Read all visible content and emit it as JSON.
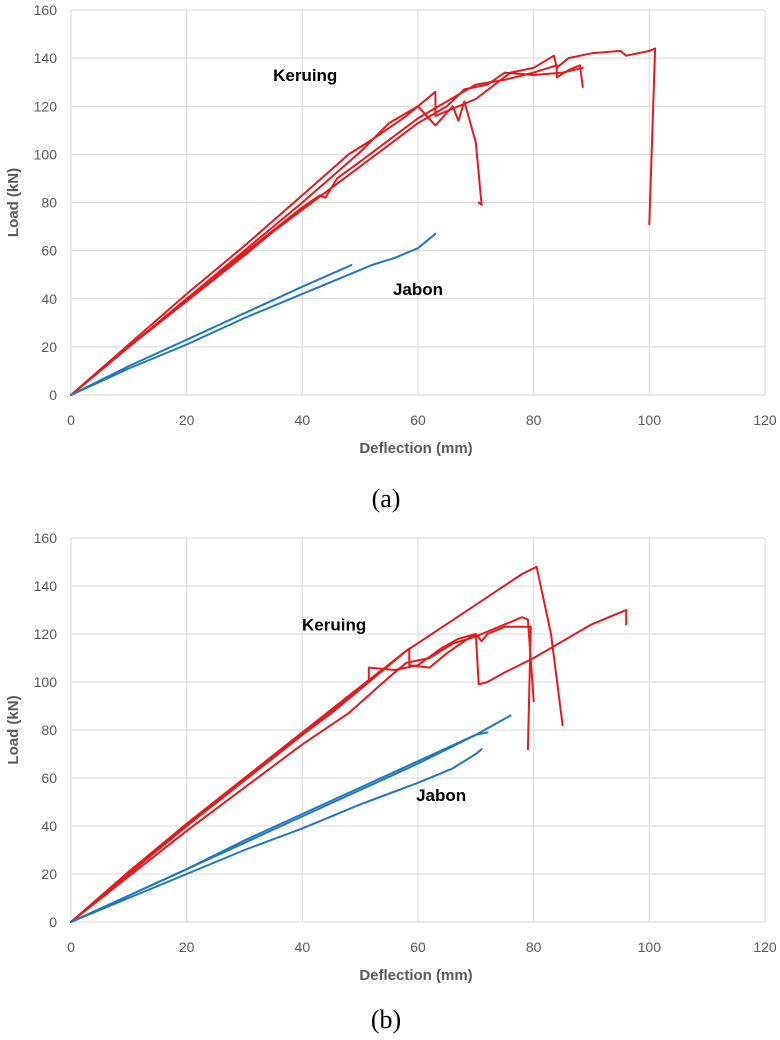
{
  "chart_data": [
    {
      "type": "line",
      "caption": "(a)",
      "xlabel": "Deflection (mm)",
      "ylabel": "Load (kN)",
      "xlim": [
        0,
        120
      ],
      "ylim": [
        0,
        160
      ],
      "xticks": [
        "0",
        "20",
        "40",
        "60",
        "80",
        "100",
        "120"
      ],
      "yticks": [
        "0",
        "20",
        "40",
        "60",
        "80",
        "100",
        "120",
        "140",
        "160"
      ],
      "grid": true,
      "annotations": [
        {
          "text": "Keruing",
          "x": 40.5,
          "y": 133
        },
        {
          "text": "Jabon",
          "x": 60,
          "y": 44
        }
      ],
      "series": [
        {
          "color": "#e41a1c",
          "points": [
            [
              0,
              0
            ],
            [
              10,
              21
            ],
            [
              20,
              42
            ],
            [
              30,
              62
            ],
            [
              40,
              83
            ],
            [
              48,
              100
            ],
            [
              52,
              106
            ],
            [
              58,
              116
            ],
            [
              63,
              126
            ],
            [
              63,
              116
            ],
            [
              68,
              121
            ],
            [
              70,
              123
            ],
            [
              76,
              134
            ],
            [
              80,
              136
            ],
            [
              83.5,
              141
            ],
            [
              84,
              136
            ],
            [
              86,
              140
            ],
            [
              90,
              142
            ],
            [
              95,
              143
            ],
            [
              96,
              141
            ],
            [
              100,
              143
            ],
            [
              101,
              144
            ],
            [
              100,
              71
            ]
          ]
        },
        {
          "color": "#e41a1c",
          "points": [
            [
              0,
              0
            ],
            [
              10,
              20
            ],
            [
              20,
              40
            ],
            [
              30,
              60
            ],
            [
              40,
              80
            ],
            [
              50,
              101
            ],
            [
              55,
              113
            ],
            [
              60,
              120
            ],
            [
              63,
              112
            ],
            [
              66,
              120
            ],
            [
              67,
              114
            ],
            [
              68,
              122
            ],
            [
              70,
              105
            ],
            [
              71,
              79
            ],
            [
              70.5,
              80
            ]
          ]
        },
        {
          "color": "#e41a1c",
          "points": [
            [
              0,
              0
            ],
            [
              10,
              20
            ],
            [
              20,
              40
            ],
            [
              30,
              59
            ],
            [
              40,
              78
            ],
            [
              43,
              83
            ],
            [
              44,
              82
            ],
            [
              46,
              90
            ],
            [
              50,
              97
            ],
            [
              55,
              106
            ],
            [
              60,
              115
            ],
            [
              65,
              122
            ],
            [
              70,
              129
            ],
            [
              75,
              131
            ],
            [
              80,
              134
            ],
            [
              84,
              137
            ],
            [
              84,
              132
            ],
            [
              86,
              135
            ],
            [
              88,
              137
            ],
            [
              88.5,
              128
            ]
          ]
        },
        {
          "color": "#e41a1c",
          "points": [
            [
              0,
              0
            ],
            [
              10,
              20
            ],
            [
              20,
              39
            ],
            [
              30,
              58
            ],
            [
              35,
              68
            ],
            [
              40,
              77
            ],
            [
              45,
              86
            ],
            [
              50,
              95
            ],
            [
              55,
              104
            ],
            [
              60,
              113
            ],
            [
              65,
              120
            ],
            [
              68,
              127
            ],
            [
              72,
              129
            ],
            [
              75,
              134
            ],
            [
              80,
              133
            ],
            [
              85,
              134
            ],
            [
              88.5,
              136
            ]
          ]
        },
        {
          "color": "#1f78c1",
          "points": [
            [
              0,
              0
            ],
            [
              10,
              11
            ],
            [
              20,
              21
            ],
            [
              30,
              32
            ],
            [
              40,
              42
            ],
            [
              50,
              52
            ],
            [
              52,
              54
            ],
            [
              56,
              57
            ],
            [
              60,
              61
            ],
            [
              63,
              67
            ]
          ]
        },
        {
          "color": "#1f78c1",
          "points": [
            [
              0,
              0
            ],
            [
              10,
              12
            ],
            [
              20,
              23
            ],
            [
              30,
              34
            ],
            [
              40,
              45
            ],
            [
              48.5,
              54
            ]
          ]
        }
      ]
    },
    {
      "type": "line",
      "caption": "(b)",
      "xlabel": "Deflection (mm)",
      "ylabel": "Load (kN)",
      "xlim": [
        0,
        120
      ],
      "ylim": [
        0,
        160
      ],
      "xticks": [
        "0",
        "20",
        "40",
        "60",
        "80",
        "100",
        "120"
      ],
      "yticks": [
        "0",
        "20",
        "40",
        "60",
        "80",
        "100",
        "120",
        "140",
        "160"
      ],
      "grid": true,
      "annotations": [
        {
          "text": "Keruing",
          "x": 45.5,
          "y": 124
        },
        {
          "text": "Jabon",
          "x": 64,
          "y": 53
        }
      ],
      "series": [
        {
          "color": "#e41a1c",
          "points": [
            [
              0,
              0
            ],
            [
              10,
              21
            ],
            [
              20,
              41
            ],
            [
              30,
              60
            ],
            [
              40,
              79
            ],
            [
              50,
              98
            ],
            [
              58,
              113
            ],
            [
              63,
              121
            ],
            [
              68,
              129
            ],
            [
              73,
              137
            ],
            [
              78,
              145
            ],
            [
              80.5,
              148
            ],
            [
              83,
              120
            ],
            [
              85,
              82
            ]
          ]
        },
        {
          "color": "#e41a1c",
          "points": [
            [
              0,
              0
            ],
            [
              10,
              20
            ],
            [
              20,
              40
            ],
            [
              30,
              59
            ],
            [
              40,
              78
            ],
            [
              48,
              94
            ],
            [
              51.5,
              100
            ],
            [
              51.5,
              106
            ],
            [
              56,
              105
            ],
            [
              60,
              107
            ],
            [
              64,
              114
            ],
            [
              67,
              118
            ],
            [
              70,
              120
            ],
            [
              70.5,
              99
            ],
            [
              72,
              100
            ],
            [
              75,
              104
            ],
            [
              80,
              110
            ],
            [
              85,
              117
            ],
            [
              90,
              124
            ],
            [
              94,
              128
            ],
            [
              96,
              130
            ],
            [
              96,
              124
            ]
          ]
        },
        {
          "color": "#e41a1c",
          "points": [
            [
              0,
              0
            ],
            [
              10,
              20
            ],
            [
              20,
              40
            ],
            [
              30,
              59
            ],
            [
              40,
              78
            ],
            [
              45,
              87
            ],
            [
              50,
              97
            ],
            [
              55,
              107
            ],
            [
              58.5,
              114
            ],
            [
              58.5,
              107
            ],
            [
              62,
              106
            ],
            [
              65,
              112
            ],
            [
              68,
              117
            ],
            [
              70,
              120
            ],
            [
              71,
              117
            ],
            [
              72,
              120
            ],
            [
              75,
              123
            ],
            [
              78,
              123
            ],
            [
              79.5,
              123
            ],
            [
              79,
              72
            ]
          ]
        },
        {
          "color": "#e41a1c",
          "points": [
            [
              0,
              0
            ],
            [
              10,
              19
            ],
            [
              20,
              38
            ],
            [
              30,
              56
            ],
            [
              40,
              74
            ],
            [
              48,
              87
            ],
            [
              55,
              102
            ],
            [
              58,
              108
            ],
            [
              62,
              110
            ],
            [
              66,
              116
            ],
            [
              70,
              119
            ],
            [
              75,
              124
            ],
            [
              78,
              127
            ],
            [
              79,
              126
            ],
            [
              80,
              92
            ]
          ]
        },
        {
          "color": "#1f78c1",
          "points": [
            [
              0,
              0
            ],
            [
              10,
              11
            ],
            [
              20,
              22
            ],
            [
              30,
              34
            ],
            [
              40,
              45
            ],
            [
              50,
              56
            ],
            [
              60,
              67
            ],
            [
              70,
              78
            ],
            [
              76,
              86
            ]
          ]
        },
        {
          "color": "#1f78c1",
          "points": [
            [
              0,
              0
            ],
            [
              10,
              11
            ],
            [
              20,
              22
            ],
            [
              30,
              33
            ],
            [
              40,
              44
            ],
            [
              50,
              55
            ],
            [
              60,
              66
            ],
            [
              70,
              78
            ],
            [
              72,
              79
            ]
          ]
        },
        {
          "color": "#1f78c1",
          "points": [
            [
              0,
              0
            ],
            [
              10,
              10
            ],
            [
              20,
              20
            ],
            [
              30,
              30
            ],
            [
              40,
              39
            ],
            [
              50,
              49
            ],
            [
              60,
              58
            ],
            [
              66,
              64
            ],
            [
              70,
              70
            ],
            [
              71,
              72
            ]
          ]
        }
      ]
    }
  ]
}
